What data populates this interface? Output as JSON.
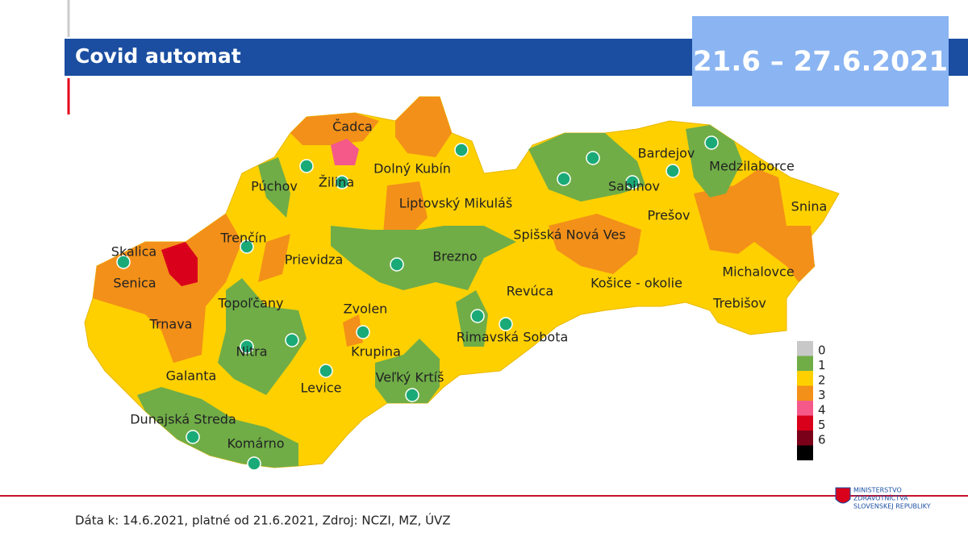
{
  "header": {
    "title": "Covid automat",
    "date_range": "21.6 – 27.6.2021"
  },
  "map": {
    "labels": [
      "Čadca",
      "Dolný Kubín",
      "Púchov",
      "Žilina",
      "Liptovský Mikuláš",
      "Bardejov",
      "Medzilaborce",
      "Sabinov",
      "Prešov",
      "Snina",
      "Skalica",
      "Trenčín",
      "Prievidza",
      "Brezno",
      "Spišská Nová Ves",
      "Senica",
      "Košice - okolie",
      "Michalovce",
      "Topoľčany",
      "Revúca",
      "Trebišov",
      "Zvolen",
      "Trnava",
      "Rimavská Sobota",
      "Nitra",
      "Krupina",
      "Galanta",
      "Veľký Krtíš",
      "Levice",
      "Dunajská Streda",
      "Komárno"
    ]
  },
  "legend": [
    {
      "label": "0",
      "color": "#c8c8c8"
    },
    {
      "label": "1",
      "color": "#70ad47"
    },
    {
      "label": "2",
      "color": "#ffd000"
    },
    {
      "label": "3",
      "color": "#f39019"
    },
    {
      "label": "4",
      "color": "#f4598a"
    },
    {
      "label": "5",
      "color": "#d9001b"
    },
    {
      "label": "6",
      "color": "#7a0019"
    },
    {
      "label": "",
      "color": "#000000"
    }
  ],
  "footer": {
    "source": "Dáta k: 14.6.2021, platné od 21.6.2021, Zdroj: NCZI, MZ, ÚVZ",
    "logo": [
      "MINISTERSTVO",
      "ZDRAVOTNÍCTVA",
      "SLOVENSKEJ REPUBLIKY"
    ]
  }
}
